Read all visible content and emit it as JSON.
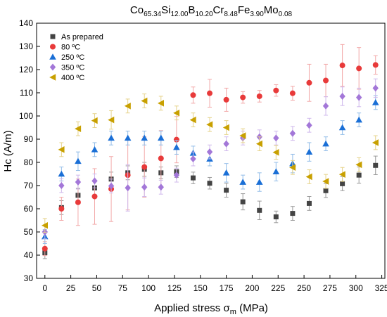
{
  "chart_data": {
    "type": "scatter",
    "title": {
      "parts": [
        {
          "text": "Co",
          "sub": false
        },
        {
          "text": "65.34",
          "sub": true
        },
        {
          "text": "Si",
          "sub": false
        },
        {
          "text": "12.00",
          "sub": true
        },
        {
          "text": "B",
          "sub": false
        },
        {
          "text": "10.20",
          "sub": true
        },
        {
          "text": "Cr",
          "sub": false
        },
        {
          "text": "8.48",
          "sub": true
        },
        {
          "text": "Fe",
          "sub": false
        },
        {
          "text": "3.90",
          "sub": true
        },
        {
          "text": "Mo",
          "sub": false
        },
        {
          "text": "0.08",
          "sub": true
        }
      ]
    },
    "xlabel": {
      "main": "Applied stress σ",
      "sub": "m",
      "tail": " (MPa)"
    },
    "ylabel": "Hc (A/m)",
    "xlim": [
      -8,
      328
    ],
    "ylim": [
      30,
      140
    ],
    "xticks": [
      "0",
      "25",
      "50",
      "75",
      "100",
      "125",
      "150",
      "175",
      "200",
      "225",
      "250",
      "275",
      "300",
      "325"
    ],
    "yticks": [
      "30",
      "40",
      "50",
      "60",
      "70",
      "80",
      "90",
      "100",
      "110",
      "120",
      "130",
      "140"
    ],
    "grid": false,
    "legend_position": "top-left",
    "series": [
      {
        "name": "As prepared",
        "marker": "square",
        "color": "#444444",
        "error_color": "#9a9a9a",
        "points": [
          {
            "x": 0,
            "y": 41.0,
            "err": 2.5
          },
          {
            "x": 16,
            "y": 60.5,
            "err": 3
          },
          {
            "x": 32,
            "y": 65.8,
            "err": 3
          },
          {
            "x": 48,
            "y": 69.0,
            "err": 3
          },
          {
            "x": 64,
            "y": 72.8,
            "err": 3
          },
          {
            "x": 80,
            "y": 75.5,
            "err": 3
          },
          {
            "x": 96,
            "y": 77.0,
            "err": 3
          },
          {
            "x": 112,
            "y": 75.5,
            "err": 2.5
          },
          {
            "x": 127,
            "y": 76.0,
            "err": 2.5
          },
          {
            "x": 143,
            "y": 73.3,
            "err": 2.5
          },
          {
            "x": 159,
            "y": 71.0,
            "err": 2.5
          },
          {
            "x": 175,
            "y": 68.0,
            "err": 3
          },
          {
            "x": 191,
            "y": 63.0,
            "err": 3.5
          },
          {
            "x": 207,
            "y": 59.3,
            "err": 4
          },
          {
            "x": 223,
            "y": 56.5,
            "err": 2.5
          },
          {
            "x": 239,
            "y": 58.0,
            "err": 3
          },
          {
            "x": 255,
            "y": 62.3,
            "err": 3
          },
          {
            "x": 271,
            "y": 67.8,
            "err": 3
          },
          {
            "x": 287,
            "y": 70.8,
            "err": 3
          },
          {
            "x": 303,
            "y": 74.5,
            "err": 3.5
          },
          {
            "x": 319,
            "y": 78.7,
            "err": 4
          }
        ]
      },
      {
        "name": "80 ºC",
        "marker": "circle",
        "color": "#e83a3a",
        "error_color": "#f2a8a8",
        "points": [
          {
            "x": 0,
            "y": 42.8,
            "err": 3
          },
          {
            "x": 16,
            "y": 60.0,
            "err": 5
          },
          {
            "x": 32,
            "y": 62.8,
            "err": 10
          },
          {
            "x": 48,
            "y": 65.3,
            "err": 12
          },
          {
            "x": 64,
            "y": 68.5,
            "err": 14
          },
          {
            "x": 80,
            "y": 74.5,
            "err": 15
          },
          {
            "x": 96,
            "y": 78.0,
            "err": 13
          },
          {
            "x": 112,
            "y": 81.7,
            "err": 12
          },
          {
            "x": 127,
            "y": 89.8,
            "err": 10
          },
          {
            "x": 143,
            "y": 109.0,
            "err": 3.5
          },
          {
            "x": 159,
            "y": 109.8,
            "err": 6
          },
          {
            "x": 175,
            "y": 107.0,
            "err": 5
          },
          {
            "x": 191,
            "y": 108.0,
            "err": 2.5
          },
          {
            "x": 207,
            "y": 108.5,
            "err": 2.5
          },
          {
            "x": 223,
            "y": 111.0,
            "err": 2.5
          },
          {
            "x": 239,
            "y": 109.8,
            "err": 3
          },
          {
            "x": 255,
            "y": 114.3,
            "err": 8
          },
          {
            "x": 271,
            "y": 115.3,
            "err": 7
          },
          {
            "x": 287,
            "y": 121.8,
            "err": 9
          },
          {
            "x": 303,
            "y": 120.5,
            "err": 9
          },
          {
            "x": 319,
            "y": 122.0,
            "err": 4
          }
        ]
      },
      {
        "name": "250 ºC",
        "marker": "triangle",
        "color": "#1a6fd6",
        "error_color": "#93bde8",
        "points": [
          {
            "x": 0,
            "y": 48.0,
            "err": 3
          },
          {
            "x": 16,
            "y": 75.0,
            "err": 3
          },
          {
            "x": 32,
            "y": 80.5,
            "err": 4
          },
          {
            "x": 48,
            "y": 85.5,
            "err": 3
          },
          {
            "x": 64,
            "y": 90.5,
            "err": 3
          },
          {
            "x": 80,
            "y": 90.5,
            "err": 3
          },
          {
            "x": 96,
            "y": 90.5,
            "err": 3
          },
          {
            "x": 112,
            "y": 90.5,
            "err": 3
          },
          {
            "x": 127,
            "y": 86.5,
            "err": 3
          },
          {
            "x": 143,
            "y": 84.0,
            "err": 3
          },
          {
            "x": 159,
            "y": 81.5,
            "err": 3
          },
          {
            "x": 175,
            "y": 75.5,
            "err": 4
          },
          {
            "x": 191,
            "y": 71.5,
            "err": 3
          },
          {
            "x": 207,
            "y": 71.5,
            "err": 4
          },
          {
            "x": 223,
            "y": 76.0,
            "err": 4
          },
          {
            "x": 239,
            "y": 79.5,
            "err": 4
          },
          {
            "x": 255,
            "y": 84.5,
            "err": 4
          },
          {
            "x": 271,
            "y": 88.0,
            "err": 3
          },
          {
            "x": 287,
            "y": 95.0,
            "err": 3
          },
          {
            "x": 303,
            "y": 98.3,
            "err": 3
          },
          {
            "x": 319,
            "y": 105.8,
            "err": 3
          }
        ]
      },
      {
        "name": "350 ºC",
        "marker": "diamond",
        "color": "#a377d8",
        "error_color": "#cfb8ec",
        "points": [
          {
            "x": 0,
            "y": 50.0,
            "err": 3
          },
          {
            "x": 16,
            "y": 70.0,
            "err": 3
          },
          {
            "x": 32,
            "y": 71.5,
            "err": 3
          },
          {
            "x": 48,
            "y": 72.0,
            "err": 3
          },
          {
            "x": 64,
            "y": 69.8,
            "err": 3
          },
          {
            "x": 80,
            "y": 69.0,
            "err": 10
          },
          {
            "x": 96,
            "y": 69.3,
            "err": 4
          },
          {
            "x": 112,
            "y": 69.3,
            "err": 3
          },
          {
            "x": 127,
            "y": 74.5,
            "err": 3
          },
          {
            "x": 143,
            "y": 81.5,
            "err": 3
          },
          {
            "x": 159,
            "y": 84.5,
            "err": 3
          },
          {
            "x": 175,
            "y": 88.0,
            "err": 3
          },
          {
            "x": 191,
            "y": 90.5,
            "err": 3
          },
          {
            "x": 207,
            "y": 91.0,
            "err": 3
          },
          {
            "x": 223,
            "y": 90.5,
            "err": 3
          },
          {
            "x": 239,
            "y": 92.5,
            "err": 3
          },
          {
            "x": 255,
            "y": 96.0,
            "err": 3
          },
          {
            "x": 271,
            "y": 104.3,
            "err": 4
          },
          {
            "x": 287,
            "y": 108.5,
            "err": 4
          },
          {
            "x": 303,
            "y": 108.0,
            "err": 4
          },
          {
            "x": 319,
            "y": 112.0,
            "err": 4
          }
        ]
      },
      {
        "name": "400 ºC",
        "marker": "triangle-left",
        "color": "#c8a000",
        "error_color": "#e6d38a",
        "points": [
          {
            "x": 0,
            "y": 52.8,
            "err": 3
          },
          {
            "x": 16,
            "y": 85.5,
            "err": 3
          },
          {
            "x": 32,
            "y": 94.5,
            "err": 3
          },
          {
            "x": 48,
            "y": 98.0,
            "err": 3
          },
          {
            "x": 64,
            "y": 98.3,
            "err": 4
          },
          {
            "x": 80,
            "y": 104.3,
            "err": 3
          },
          {
            "x": 96,
            "y": 106.5,
            "err": 3
          },
          {
            "x": 112,
            "y": 105.5,
            "err": 3
          },
          {
            "x": 127,
            "y": 101.3,
            "err": 3
          },
          {
            "x": 143,
            "y": 98.3,
            "err": 3
          },
          {
            "x": 159,
            "y": 96.3,
            "err": 3
          },
          {
            "x": 175,
            "y": 95.0,
            "err": 3
          },
          {
            "x": 191,
            "y": 91.5,
            "err": 3
          },
          {
            "x": 207,
            "y": 88.0,
            "err": 3
          },
          {
            "x": 223,
            "y": 84.3,
            "err": 3
          },
          {
            "x": 239,
            "y": 77.8,
            "err": 3
          },
          {
            "x": 255,
            "y": 73.8,
            "err": 3
          },
          {
            "x": 271,
            "y": 71.8,
            "err": 3
          },
          {
            "x": 287,
            "y": 74.8,
            "err": 3
          },
          {
            "x": 303,
            "y": 79.0,
            "err": 3
          },
          {
            "x": 319,
            "y": 88.5,
            "err": 3
          }
        ]
      }
    ]
  }
}
